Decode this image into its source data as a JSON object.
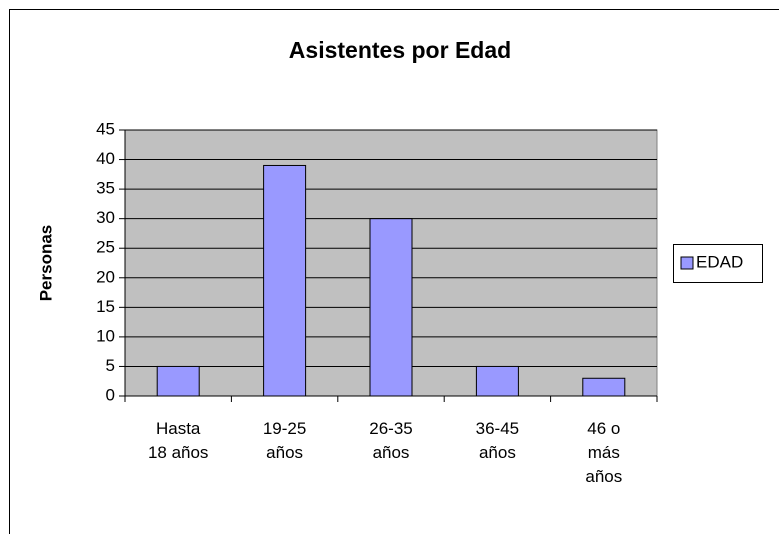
{
  "chart_data": {
    "type": "bar",
    "title": "Asistentes por Edad",
    "y_label": "Personas",
    "categories": [
      "Hasta\n18 años",
      "19-25\naños",
      "26-35\naños",
      "36-45\naños",
      "46 o\nmás\naños"
    ],
    "series": [
      {
        "name": "EDAD",
        "color": "#9999ff",
        "values": [
          5,
          39,
          30,
          5,
          3
        ]
      }
    ],
    "ylim": [
      0,
      45
    ],
    "yticks": [
      0,
      5,
      10,
      15,
      20,
      25,
      30,
      35,
      40,
      45
    ],
    "grid": true,
    "legend": "right"
  }
}
